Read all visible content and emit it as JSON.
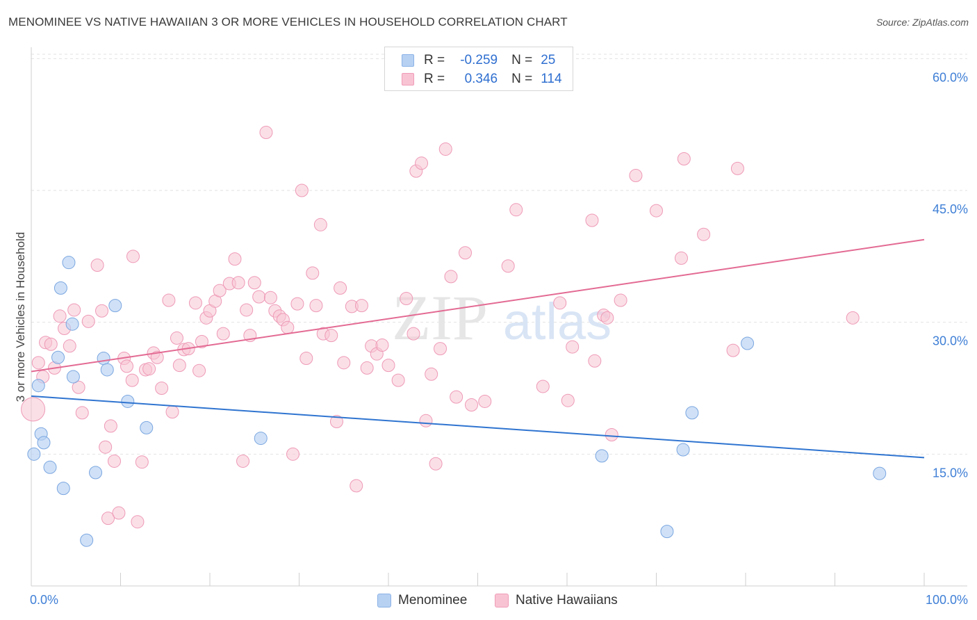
{
  "title": "MENOMINEE VS NATIVE HAWAIIAN 3 OR MORE VEHICLES IN HOUSEHOLD CORRELATION CHART",
  "source": "Source: ZipAtlas.com",
  "watermark": {
    "zip": "ZIP",
    "atlas": "atlas"
  },
  "legend": {
    "rows": [
      {
        "r_label": "R =",
        "r_value": "-0.259",
        "n_label": "N =",
        "n_value": "25"
      },
      {
        "r_label": "R =",
        "r_value": "0.346",
        "n_label": "N =",
        "n_value": "114"
      }
    ]
  },
  "bottom_legend": {
    "series1": "Menominee",
    "series2": "Native Hawaiians"
  },
  "colors": {
    "blue_fill": "#b7d1f3",
    "blue_stroke": "#7aa6e0",
    "blue_line": "#2f74d0",
    "pink_fill": "#f8c4d4",
    "pink_stroke": "#ee9ab6",
    "pink_line": "#e36a93",
    "axis_label": "#3f7fd6",
    "grid": "#e2e2e2"
  },
  "chart_data": {
    "type": "scatter",
    "title": "MENOMINEE VS NATIVE HAWAIIAN 3 OR MORE VEHICLES IN HOUSEHOLD CORRELATION CHART",
    "xlabel": "",
    "ylabel": "3 or more Vehicles in Household",
    "xlim": [
      0,
      100
    ],
    "ylim": [
      0,
      60.5
    ],
    "x_tick_labels": [
      "0.0%",
      "100.0%"
    ],
    "y_ticks": [
      15,
      30,
      45,
      60
    ],
    "y_tick_labels": [
      "15.0%",
      "30.0%",
      "45.0%",
      "60.0%"
    ],
    "series": [
      {
        "name": "Menominee",
        "trend": {
          "x0": 0,
          "y0": 21.6,
          "x1": 100,
          "y1": 14.6
        },
        "points": [
          [
            0.3,
            15.0
          ],
          [
            0.8,
            22.8
          ],
          [
            1.1,
            17.3
          ],
          [
            1.4,
            16.3
          ],
          [
            2.1,
            13.5
          ],
          [
            3.0,
            26.0
          ],
          [
            3.3,
            33.9
          ],
          [
            3.6,
            11.1
          ],
          [
            4.2,
            36.8
          ],
          [
            4.6,
            29.8
          ],
          [
            4.7,
            23.8
          ],
          [
            6.2,
            5.2
          ],
          [
            7.2,
            12.9
          ],
          [
            8.1,
            25.9
          ],
          [
            8.5,
            24.6
          ],
          [
            9.4,
            31.9
          ],
          [
            10.8,
            21.0
          ],
          [
            12.9,
            18.0
          ],
          [
            25.7,
            16.8
          ],
          [
            63.9,
            14.8
          ],
          [
            71.2,
            6.2
          ],
          [
            73.0,
            15.5
          ],
          [
            74.0,
            19.7
          ],
          [
            80.2,
            27.6
          ],
          [
            95.0,
            12.8
          ]
        ]
      },
      {
        "name": "Native Hawaiians",
        "trend": {
          "x0": 0,
          "y0": 24.4,
          "x1": 100,
          "y1": 39.4
        },
        "points": [
          [
            0.2,
            20.1
          ],
          [
            0.8,
            25.4
          ],
          [
            1.3,
            23.8
          ],
          [
            1.6,
            27.7
          ],
          [
            2.2,
            27.5
          ],
          [
            2.6,
            24.8
          ],
          [
            3.2,
            30.7
          ],
          [
            3.7,
            29.3
          ],
          [
            4.3,
            27.3
          ],
          [
            4.8,
            31.4
          ],
          [
            5.3,
            22.6
          ],
          [
            5.7,
            19.7
          ],
          [
            6.4,
            30.1
          ],
          [
            7.4,
            36.5
          ],
          [
            7.9,
            31.3
          ],
          [
            8.3,
            15.8
          ],
          [
            8.6,
            7.7
          ],
          [
            8.9,
            18.2
          ],
          [
            9.3,
            14.2
          ],
          [
            9.8,
            8.3
          ],
          [
            10.4,
            25.9
          ],
          [
            10.7,
            25.0
          ],
          [
            11.3,
            23.4
          ],
          [
            11.4,
            37.5
          ],
          [
            11.9,
            7.3
          ],
          [
            12.4,
            14.1
          ],
          [
            12.8,
            24.6
          ],
          [
            13.2,
            24.7
          ],
          [
            13.7,
            26.5
          ],
          [
            14.1,
            26.0
          ],
          [
            14.6,
            22.5
          ],
          [
            15.4,
            32.5
          ],
          [
            15.8,
            19.8
          ],
          [
            16.3,
            28.2
          ],
          [
            16.6,
            25.1
          ],
          [
            17.1,
            26.9
          ],
          [
            17.6,
            27.0
          ],
          [
            18.4,
            32.2
          ],
          [
            18.8,
            24.5
          ],
          [
            19.1,
            27.8
          ],
          [
            19.6,
            30.5
          ],
          [
            20.0,
            31.3
          ],
          [
            20.6,
            32.4
          ],
          [
            21.1,
            33.6
          ],
          [
            21.5,
            28.7
          ],
          [
            22.2,
            34.4
          ],
          [
            22.8,
            37.2
          ],
          [
            23.2,
            34.5
          ],
          [
            23.7,
            14.2
          ],
          [
            24.1,
            31.4
          ],
          [
            24.5,
            28.5
          ],
          [
            25.0,
            34.5
          ],
          [
            25.5,
            32.9
          ],
          [
            26.3,
            51.6
          ],
          [
            26.8,
            32.8
          ],
          [
            27.3,
            31.3
          ],
          [
            27.8,
            30.7
          ],
          [
            28.2,
            30.3
          ],
          [
            28.7,
            29.4
          ],
          [
            29.3,
            15.0
          ],
          [
            29.8,
            32.1
          ],
          [
            30.3,
            45.0
          ],
          [
            30.8,
            25.9
          ],
          [
            31.5,
            35.6
          ],
          [
            31.9,
            31.9
          ],
          [
            32.4,
            41.1
          ],
          [
            32.7,
            28.7
          ],
          [
            33.6,
            28.5
          ],
          [
            34.2,
            18.7
          ],
          [
            34.6,
            33.9
          ],
          [
            35.0,
            25.4
          ],
          [
            35.9,
            31.8
          ],
          [
            36.4,
            11.4
          ],
          [
            37.0,
            31.9
          ],
          [
            37.6,
            24.8
          ],
          [
            38.1,
            27.3
          ],
          [
            38.7,
            26.4
          ],
          [
            39.3,
            27.4
          ],
          [
            40.0,
            25.1
          ],
          [
            41.1,
            23.4
          ],
          [
            42.0,
            32.7
          ],
          [
            42.8,
            28.7
          ],
          [
            43.1,
            47.2
          ],
          [
            43.7,
            48.1
          ],
          [
            44.2,
            18.8
          ],
          [
            44.8,
            24.1
          ],
          [
            45.3,
            13.9
          ],
          [
            45.8,
            27.0
          ],
          [
            46.4,
            49.7
          ],
          [
            47.0,
            35.2
          ],
          [
            47.6,
            21.5
          ],
          [
            48.6,
            37.9
          ],
          [
            49.3,
            20.6
          ],
          [
            50.8,
            21.0
          ],
          [
            53.4,
            36.4
          ],
          [
            54.3,
            42.8
          ],
          [
            57.3,
            22.7
          ],
          [
            59.2,
            32.2
          ],
          [
            60.1,
            21.1
          ],
          [
            60.6,
            27.2
          ],
          [
            62.8,
            41.6
          ],
          [
            63.1,
            25.6
          ],
          [
            64.1,
            30.8
          ],
          [
            64.5,
            30.5
          ],
          [
            65.0,
            17.2
          ],
          [
            66.0,
            32.5
          ],
          [
            67.7,
            46.7
          ],
          [
            70.0,
            42.7
          ],
          [
            72.8,
            37.3
          ],
          [
            73.1,
            48.6
          ],
          [
            75.3,
            40.0
          ],
          [
            78.6,
            26.8
          ],
          [
            79.1,
            47.5
          ],
          [
            92.0,
            30.5
          ]
        ]
      }
    ]
  }
}
